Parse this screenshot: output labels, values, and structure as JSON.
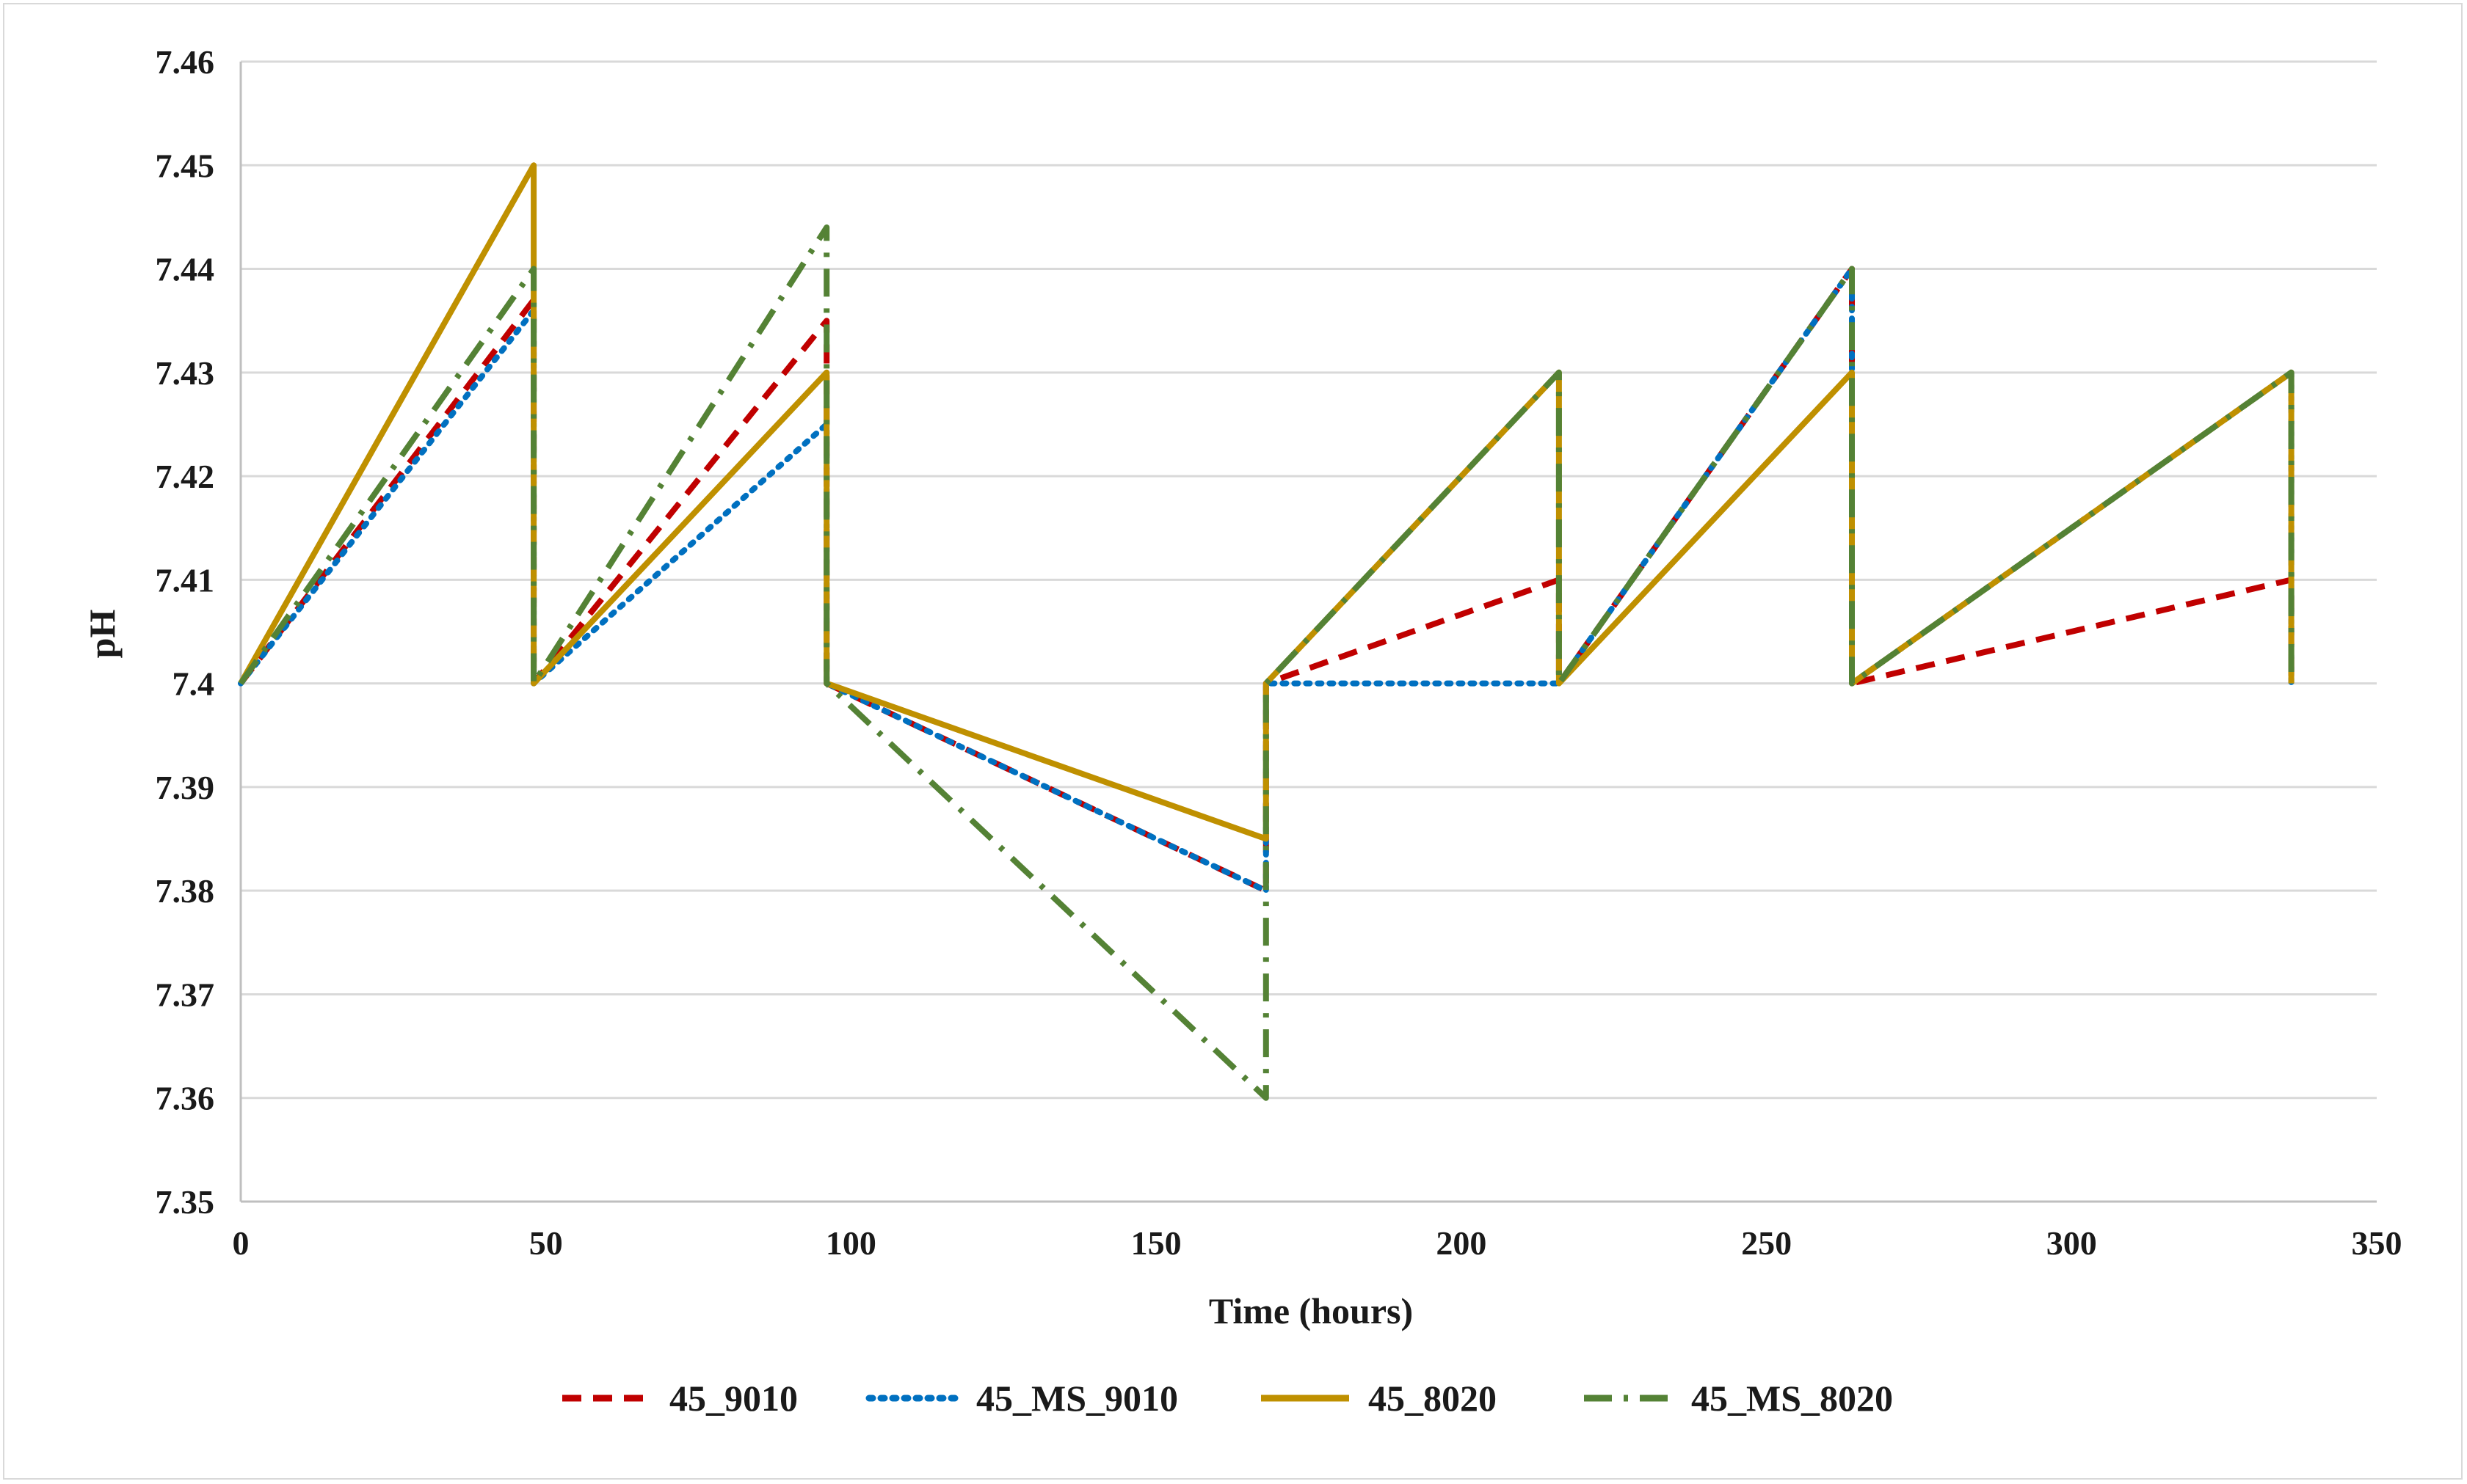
{
  "chart_data": {
    "type": "line",
    "xlabel": "Time (hours)",
    "ylabel": "pH",
    "xlim": [
      0,
      350
    ],
    "ylim": [
      7.35,
      7.46
    ],
    "x_ticks": [
      0,
      50,
      100,
      150,
      200,
      250,
      300,
      350
    ],
    "y_ticks": [
      7.35,
      7.36,
      7.37,
      7.38,
      7.39,
      7.4,
      7.41,
      7.42,
      7.43,
      7.44,
      7.45,
      7.46
    ],
    "x_tick_labels": [
      "0",
      "50",
      "100",
      "150",
      "200",
      "250",
      "300",
      "350"
    ],
    "y_tick_labels": [
      "7.35",
      "7.36",
      "7.37",
      "7.38",
      "7.39",
      "7.4",
      "7.41",
      "7.42",
      "7.43",
      "7.44",
      "7.45",
      "7.46"
    ],
    "grid": "horizontal",
    "legend_position": "bottom",
    "series": [
      {
        "name": "45_9010",
        "color": "#c00000",
        "style": "dashed",
        "points": [
          [
            0,
            7.4
          ],
          [
            48,
            7.437
          ],
          [
            48,
            7.4
          ],
          [
            96,
            7.435
          ],
          [
            96,
            7.4
          ],
          [
            168,
            7.38
          ],
          [
            168,
            7.4
          ],
          [
            216,
            7.41
          ],
          [
            216,
            7.4
          ],
          [
            264,
            7.44
          ],
          [
            264,
            7.4
          ],
          [
            336,
            7.41
          ],
          [
            336,
            7.4
          ]
        ]
      },
      {
        "name": "45_MS_9010",
        "color": "#0070c0",
        "style": "dotted",
        "points": [
          [
            0,
            7.4
          ],
          [
            48,
            7.436
          ],
          [
            48,
            7.4
          ],
          [
            96,
            7.425
          ],
          [
            96,
            7.4
          ],
          [
            168,
            7.38
          ],
          [
            168,
            7.4
          ],
          [
            216,
            7.4
          ],
          [
            216,
            7.4
          ],
          [
            264,
            7.44
          ],
          [
            264,
            7.4
          ],
          [
            336,
            7.43
          ],
          [
            336,
            7.4
          ]
        ]
      },
      {
        "name": "45_8020",
        "color": "#bf9000",
        "style": "solid",
        "points": [
          [
            0,
            7.4
          ],
          [
            48,
            7.45
          ],
          [
            48,
            7.4
          ],
          [
            96,
            7.43
          ],
          [
            96,
            7.4
          ],
          [
            168,
            7.385
          ],
          [
            168,
            7.4
          ],
          [
            216,
            7.43
          ],
          [
            216,
            7.4
          ],
          [
            264,
            7.43
          ],
          [
            264,
            7.4
          ],
          [
            336,
            7.43
          ],
          [
            336,
            7.4
          ]
        ]
      },
      {
        "name": "45_MS_8020",
        "color": "#548235",
        "style": "dashdot",
        "points": [
          [
            0,
            7.4
          ],
          [
            48,
            7.44
          ],
          [
            48,
            7.4
          ],
          [
            96,
            7.444
          ],
          [
            96,
            7.4
          ],
          [
            168,
            7.36
          ],
          [
            168,
            7.4
          ],
          [
            216,
            7.43
          ],
          [
            216,
            7.4
          ],
          [
            264,
            7.44
          ],
          [
            264,
            7.4
          ],
          [
            336,
            7.43
          ],
          [
            336,
            7.4
          ]
        ]
      }
    ]
  }
}
